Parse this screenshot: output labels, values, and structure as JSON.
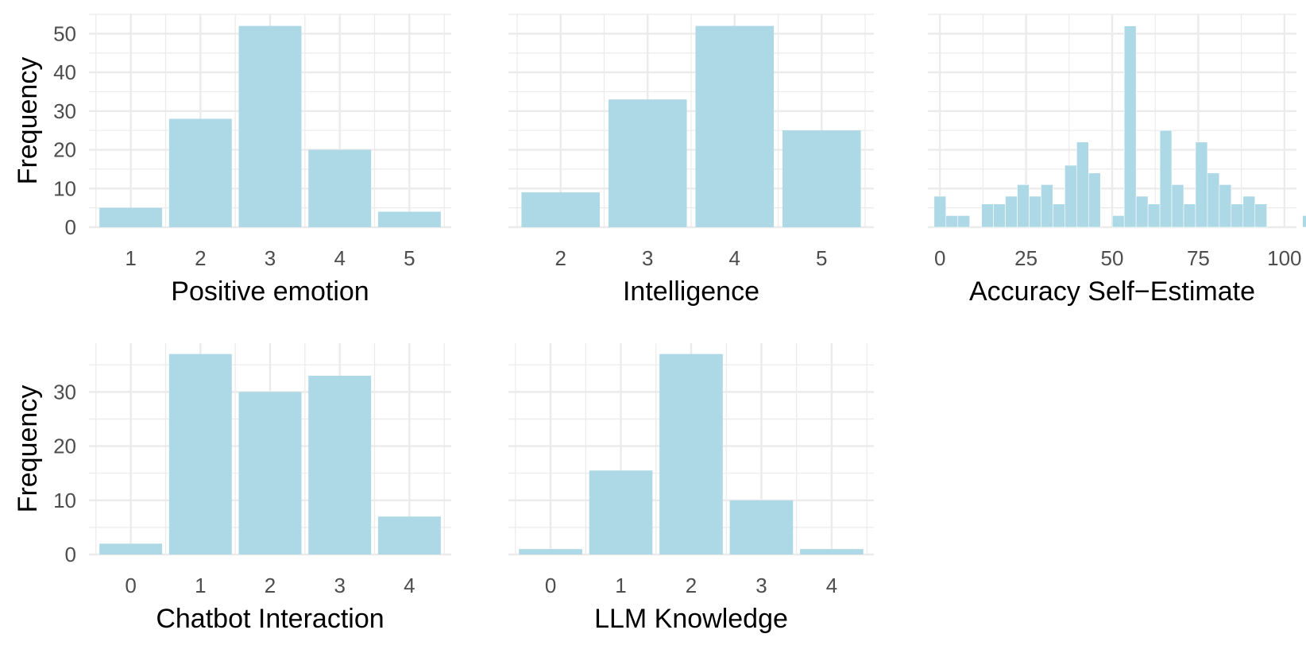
{
  "figure": {
    "bar_color": "#add8e6",
    "grid_color": "#ebebeb",
    "tick_color": "#4d4d4d",
    "label_color": "#000000"
  },
  "chart_data": [
    {
      "type": "bar",
      "id": "positive-emotion",
      "categories": [
        "1",
        "2",
        "3",
        "4",
        "5"
      ],
      "values": [
        5,
        28,
        52,
        20,
        4
      ],
      "xlabel": "Positive emotion",
      "ylabel": "Frequency",
      "ylim": [
        0,
        55
      ],
      "yticks": [
        0,
        10,
        20,
        30,
        40,
        50
      ],
      "show_y_tick_labels": true,
      "grid": true
    },
    {
      "type": "bar",
      "id": "intelligence",
      "categories": [
        "2",
        "3",
        "4",
        "5"
      ],
      "values": [
        9,
        33,
        52,
        25
      ],
      "xlabel": "Intelligence",
      "ylabel": "",
      "ylim": [
        0,
        55
      ],
      "yticks": [
        0,
        10,
        20,
        30,
        40,
        50
      ],
      "show_y_tick_labels": false,
      "grid": true
    },
    {
      "type": "histogram",
      "id": "accuracy-self-estimate",
      "bin_width": 3.45,
      "bins_start": -1.7,
      "values": [
        8,
        3,
        3,
        0,
        6,
        6,
        8,
        11,
        8,
        11,
        6,
        16,
        22,
        14,
        0,
        3,
        52,
        8,
        6,
        25,
        11,
        6,
        22,
        14,
        11,
        6,
        8,
        6,
        0,
        0,
        0,
        3
      ],
      "xlabel": "Accuracy Self−Estimate",
      "ylabel": "",
      "xlim": [
        -3.5,
        103.5
      ],
      "xticks": [
        0,
        25,
        50,
        75,
        100
      ],
      "ylim": [
        0,
        55
      ],
      "yticks": [
        0,
        10,
        20,
        30,
        40,
        50
      ],
      "show_y_tick_labels": false,
      "grid": true
    },
    {
      "type": "bar",
      "id": "chatbot-interaction",
      "categories": [
        "0",
        "1",
        "2",
        "3",
        "4"
      ],
      "values": [
        2,
        37,
        30,
        33,
        7
      ],
      "xlabel": "Chatbot Interaction",
      "ylabel": "Frequency",
      "ylim": [
        0,
        39
      ],
      "yticks": [
        0,
        10,
        20,
        30
      ],
      "show_y_tick_labels": true,
      "grid": true
    },
    {
      "type": "bar",
      "id": "llm-knowledge",
      "categories": [
        "0",
        "1",
        "2",
        "3",
        "4"
      ],
      "values": [
        1,
        15.5,
        37,
        10,
        1
      ],
      "xlabel": "LLM Knowledge",
      "ylabel": "",
      "ylim": [
        0,
        39
      ],
      "yticks": [
        0,
        10,
        20,
        30
      ],
      "show_y_tick_labels": false,
      "grid": true
    }
  ]
}
